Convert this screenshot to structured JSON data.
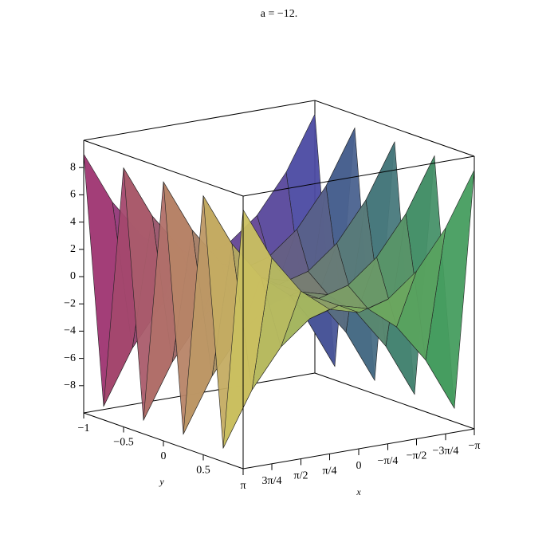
{
  "chart_data": {
    "type": "surface3d",
    "title": "a = −12.",
    "x_label": "x",
    "y_label": "y",
    "x": [
      -3.14,
      -2.36,
      -1.57,
      -0.79,
      0,
      0.79,
      1.57,
      2.36,
      3.14
    ],
    "y": [
      -1,
      -0.75,
      -0.5,
      -0.25,
      0,
      0.25,
      0.5,
      0.75,
      1
    ],
    "z": [
      [
        9,
        5.1,
        2.3,
        0.6,
        0,
        0.6,
        2.3,
        5.1,
        9
      ],
      [
        -9,
        -5.1,
        -2.3,
        -0.6,
        0,
        -0.6,
        -2.3,
        -5.1,
        -9
      ],
      [
        9,
        5.1,
        2.3,
        0.6,
        0,
        0.6,
        2.3,
        5.1,
        9
      ],
      [
        -9,
        -5.1,
        -2.3,
        -0.6,
        0,
        -0.6,
        -2.3,
        -5.1,
        -9
      ],
      [
        9,
        5.1,
        2.3,
        0.6,
        0,
        0.6,
        2.3,
        5.1,
        9
      ],
      [
        -9,
        -5.1,
        -2.3,
        -0.6,
        0,
        -0.6,
        -2.3,
        -5.1,
        -9
      ],
      [
        9,
        5.1,
        2.3,
        0.6,
        0,
        0.6,
        2.3,
        5.1,
        9
      ],
      [
        -9,
        -5.1,
        -2.3,
        -0.6,
        0,
        -0.6,
        -2.3,
        -5.1,
        -9
      ],
      [
        9,
        5.1,
        2.3,
        0.6,
        0,
        0.6,
        2.3,
        5.1,
        9
      ]
    ],
    "xlim": [
      -3.14,
      3.14
    ],
    "ylim": [
      -1,
      1
    ],
    "zlim": [
      -10,
      10
    ],
    "xticks": [
      {
        "value": 3.14,
        "label": "π"
      },
      {
        "value": 2.36,
        "label": "3π/4"
      },
      {
        "value": 1.57,
        "label": "π/2"
      },
      {
        "value": 0.79,
        "label": "π/4"
      },
      0,
      {
        "value": -0.79,
        "label": "−π/4"
      },
      {
        "value": -1.57,
        "label": "−π/2"
      },
      {
        "value": -2.36,
        "label": "−3π/4"
      },
      {
        "value": -3.14,
        "label": "−π"
      }
    ],
    "yticks": [
      {
        "value": -1,
        "label": "−1"
      },
      {
        "value": -0.5,
        "label": "−0.5"
      },
      0,
      0.5
    ],
    "zticks": [
      {
        "value": -8,
        "label": "−8"
      },
      {
        "value": -6,
        "label": "−6"
      },
      {
        "value": -4,
        "label": "−4"
      },
      {
        "value": -2,
        "label": "−2"
      },
      0,
      2,
      4,
      6,
      8
    ]
  }
}
